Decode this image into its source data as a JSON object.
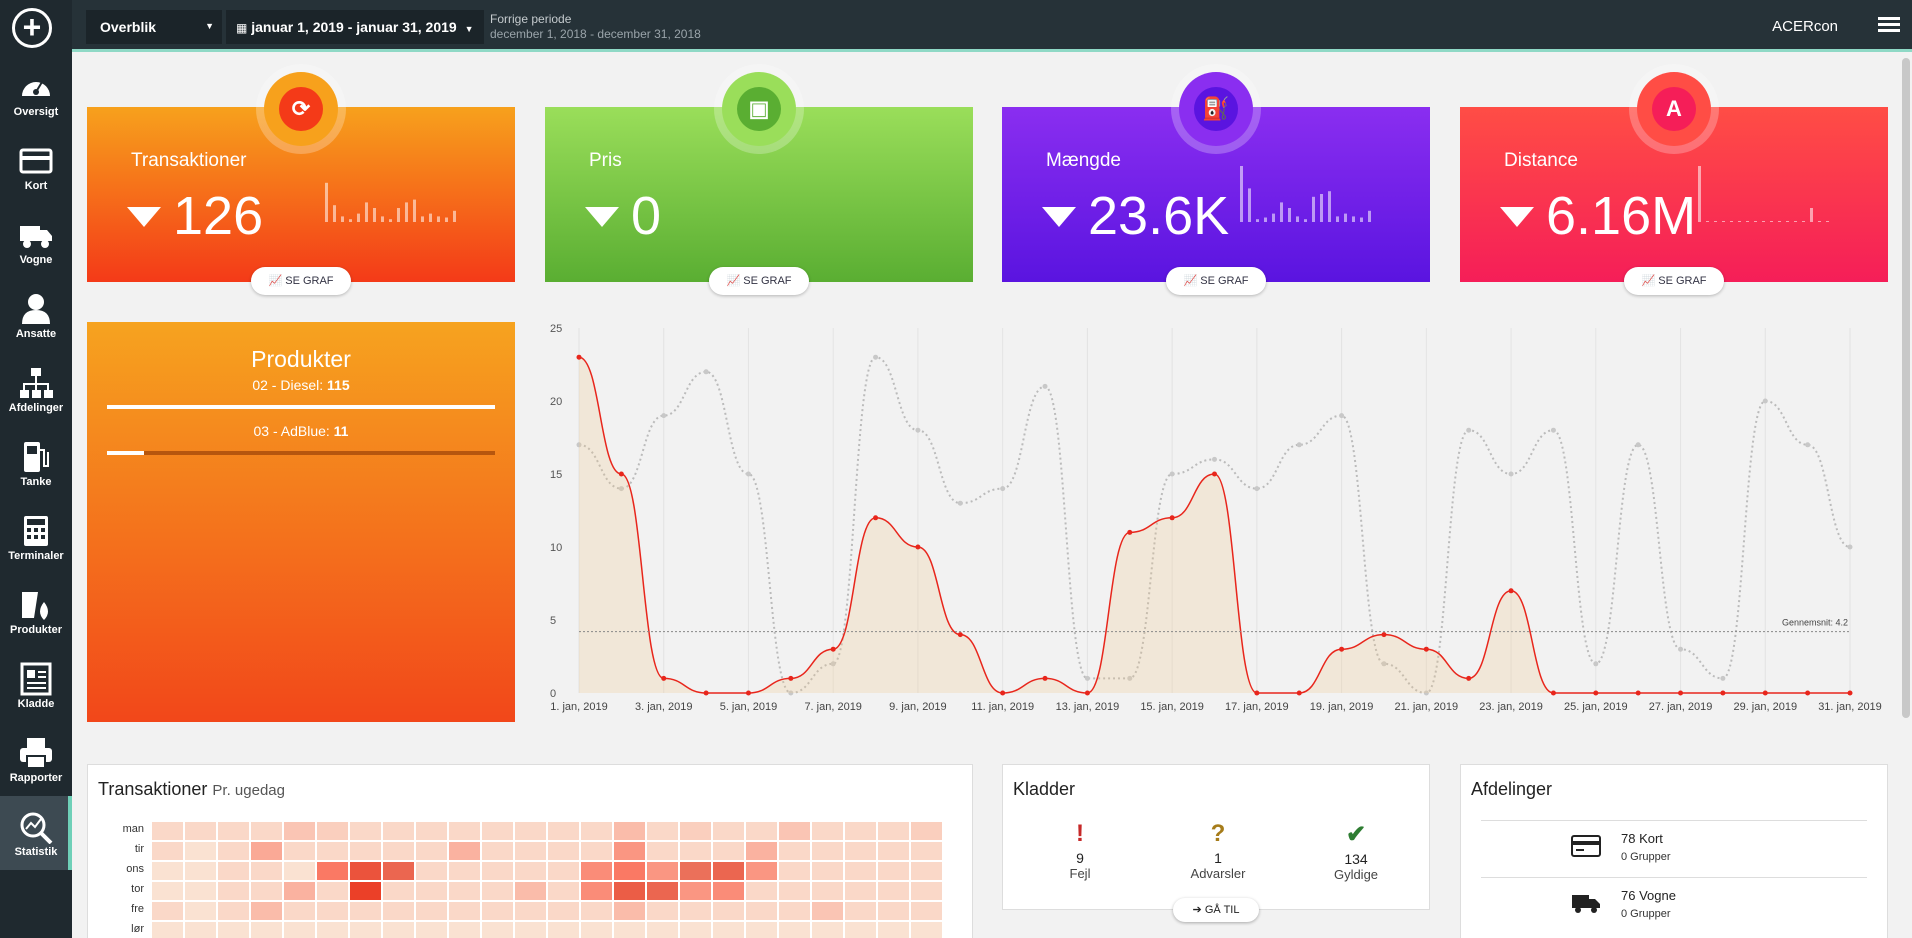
{
  "sidebar": {
    "items": [
      {
        "label": "Oversigt",
        "icon": "dashboard-gauge-icon"
      },
      {
        "label": "Kort",
        "icon": "credit-card-icon"
      },
      {
        "label": "Vogne",
        "icon": "truck-icon"
      },
      {
        "label": "Ansatte",
        "icon": "person-icon"
      },
      {
        "label": "Afdelinger",
        "icon": "org-chart-icon"
      },
      {
        "label": "Tanke",
        "icon": "fuel-pump-icon"
      },
      {
        "label": "Terminaler",
        "icon": "terminal-keypad-icon"
      },
      {
        "label": "Produkter",
        "icon": "fuel-drop-icon"
      },
      {
        "label": "Kladde",
        "icon": "document-icon"
      },
      {
        "label": "Rapporter",
        "icon": "printer-icon"
      },
      {
        "label": "Statistik",
        "icon": "statistics-magnifier-icon"
      }
    ],
    "active": "Statistik"
  },
  "header": {
    "view": "Overblik",
    "date_range": "januar 1, 2019 - januar 31, 2019",
    "prev_label": "Forrige periode",
    "prev_range": "december 1, 2018 - december 31, 2018",
    "user": "ACERcon"
  },
  "cards": [
    {
      "title": "Transaktioner",
      "value": "126",
      "button": "SE GRAF",
      "icon": "refresh-icon",
      "color_top": "#f7a11c",
      "color_bottom": "#f43a18",
      "spark": [
        0.7,
        0.3,
        0.1,
        0.05,
        0.15,
        0.35,
        0.25,
        0.1,
        0.05,
        0.25,
        0.35,
        0.4,
        0.1,
        0.15,
        0.1,
        0.08,
        0.2
      ]
    },
    {
      "title": "Pris",
      "value": "0",
      "button": "SE GRAF",
      "icon": "money-icon",
      "color_top": "#9ade5a",
      "color_bottom": "#5aae32",
      "spark": []
    },
    {
      "title": "Mængde",
      "value": "23.6K",
      "button": "SE GRAF",
      "icon": "fuel-icon",
      "color_top": "#8a2ef0",
      "color_bottom": "#5a14e0",
      "spark": [
        1,
        0.6,
        0.05,
        0.08,
        0.15,
        0.35,
        0.25,
        0.1,
        0.05,
        0.45,
        0.5,
        0.55,
        0.1,
        0.15,
        0.1,
        0.08,
        0.2
      ]
    },
    {
      "title": "Distance",
      "value": "6.16M",
      "button": "SE GRAF",
      "icon": "road-icon",
      "color_top": "#ff4d45",
      "color_bottom": "#f51e58",
      "spark": [
        1,
        0,
        0,
        0,
        0,
        0,
        0,
        0,
        0,
        0,
        0,
        0,
        0,
        0,
        0.25,
        0,
        0
      ]
    }
  ],
  "products": {
    "title": "Produkter",
    "items": [
      {
        "name": "02 - Diesel: ",
        "count": "115",
        "share": 1.0
      },
      {
        "name": "03 - AdBlue: ",
        "count": "11",
        "share": 0.096
      }
    ]
  },
  "chart_data": {
    "type": "line",
    "x": [
      "1. jan, 2019",
      "2. jan, 2019",
      "3. jan, 2019",
      "4. jan, 2019",
      "5. jan, 2019",
      "6. jan, 2019",
      "7. jan, 2019",
      "8. jan, 2019",
      "9. jan, 2019",
      "10. jan, 2019",
      "11. jan, 2019",
      "12. jan, 2019",
      "13. jan, 2019",
      "14. jan, 2019",
      "15. jan, 2019",
      "16. jan, 2019",
      "17. jan, 2019",
      "18. jan, 2019",
      "19. jan, 2019",
      "20. jan, 2019",
      "21. jan, 2019",
      "22. jan, 2019",
      "23. jan, 2019",
      "24. jan, 2019",
      "25. jan, 2019",
      "26. jan, 2019",
      "27. jan, 2019",
      "28. jan, 2019",
      "29. jan, 2019",
      "30. jan, 2019",
      "31. jan, 2019"
    ],
    "x_ticks": [
      "1. jan, 2019",
      "3. jan, 2019",
      "5. jan, 2019",
      "7. jan, 2019",
      "9. jan, 2019",
      "11. jan, 2019",
      "13. jan, 2019",
      "15. jan, 2019",
      "17. jan, 2019",
      "19. jan, 2019",
      "21. jan, 2019",
      "23. jan, 2019",
      "25. jan, 2019",
      "27. jan, 2019",
      "29. jan, 2019",
      "31. jan, 2019"
    ],
    "series": [
      {
        "values": [
          23,
          15,
          1,
          0,
          0,
          1,
          3,
          12,
          10,
          4,
          0,
          1,
          0,
          11,
          12,
          15,
          0,
          0,
          3,
          4,
          3,
          1,
          7,
          0,
          0,
          0,
          0,
          0,
          0,
          0,
          0
        ],
        "color": "#e8261c"
      },
      {
        "values": [
          17,
          14,
          19,
          22,
          15,
          0,
          2,
          23,
          18,
          13,
          14,
          21,
          1,
          1,
          15,
          16,
          14,
          17,
          19,
          2,
          0,
          18,
          15,
          18,
          2,
          17,
          3,
          1,
          20,
          17,
          10
        ],
        "color": "#bbbbbb"
      }
    ],
    "ylim": [
      0,
      25
    ],
    "yticks": [
      0,
      5,
      10,
      15,
      20,
      25
    ],
    "average": 4.2,
    "average_label": "Gennemsnit: 4.2"
  },
  "weekly": {
    "title": "Transaktioner",
    "subtitle": "Pr. ugedag",
    "days": [
      "man",
      "tir",
      "ons",
      "tor",
      "fre",
      "lør"
    ],
    "cells": [
      [
        0.1,
        0.1,
        0.1,
        0.1,
        0.2,
        0.15,
        0.1,
        0.1,
        0.1,
        0.1,
        0.1,
        0.1,
        0.1,
        0.1,
        0.25,
        0.1,
        0.15,
        0.1,
        0.1,
        0.2,
        0.1,
        0.1,
        0.1,
        0.15
      ],
      [
        0.1,
        0.05,
        0.1,
        0.35,
        0.1,
        0.1,
        0.1,
        0.1,
        0.1,
        0.3,
        0.1,
        0.1,
        0.1,
        0.1,
        0.45,
        0.1,
        0.1,
        0.1,
        0.3,
        0.1,
        0.1,
        0.1,
        0.1,
        0.1
      ],
      [
        0.05,
        0.05,
        0.1,
        0.1,
        0.05,
        0.6,
        0.8,
        0.7,
        0.1,
        0.1,
        0.1,
        0.1,
        0.1,
        0.5,
        0.6,
        0.45,
        0.65,
        0.7,
        0.45,
        0.1,
        0.1,
        0.1,
        0.1,
        0.1
      ],
      [
        0.05,
        0.05,
        0.1,
        0.1,
        0.3,
        0.1,
        0.9,
        0.1,
        0.1,
        0.1,
        0.1,
        0.25,
        0.1,
        0.5,
        0.75,
        0.7,
        0.45,
        0.5,
        0.1,
        0.1,
        0.1,
        0.1,
        0.1,
        0.1
      ],
      [
        0.1,
        0.05,
        0.1,
        0.25,
        0.1,
        0.1,
        0.1,
        0.1,
        0.1,
        0.1,
        0.1,
        0.1,
        0.1,
        0.1,
        0.25,
        0.1,
        0.1,
        0.1,
        0.1,
        0.1,
        0.2,
        0.1,
        0.1,
        0.1
      ],
      [
        0.05,
        0.05,
        0.05,
        0.05,
        0.05,
        0.05,
        0.05,
        0.05,
        0.05,
        0.05,
        0.05,
        0.05,
        0.05,
        0.05,
        0.05,
        0.05,
        0.05,
        0.05,
        0.05,
        0.05,
        0.05,
        0.05,
        0.05,
        0.05
      ]
    ]
  },
  "kladder": {
    "title": "Kladder",
    "errors": {
      "count": "9",
      "label": "Fejl",
      "symbol": "!"
    },
    "warnings": {
      "count": "1",
      "label": "Advarsler",
      "symbol": "?"
    },
    "valid": {
      "count": "134",
      "label": "Gyldige",
      "symbol": "✔"
    },
    "button": "GÅ TIL"
  },
  "afdelinger": {
    "title": "Afdelinger",
    "rows": [
      {
        "main": "78 Kort",
        "sub": "0 Grupper",
        "icon": "credit-card-icon"
      },
      {
        "main": "76 Vogne",
        "sub": "0 Grupper",
        "icon": "truck-icon"
      }
    ]
  }
}
